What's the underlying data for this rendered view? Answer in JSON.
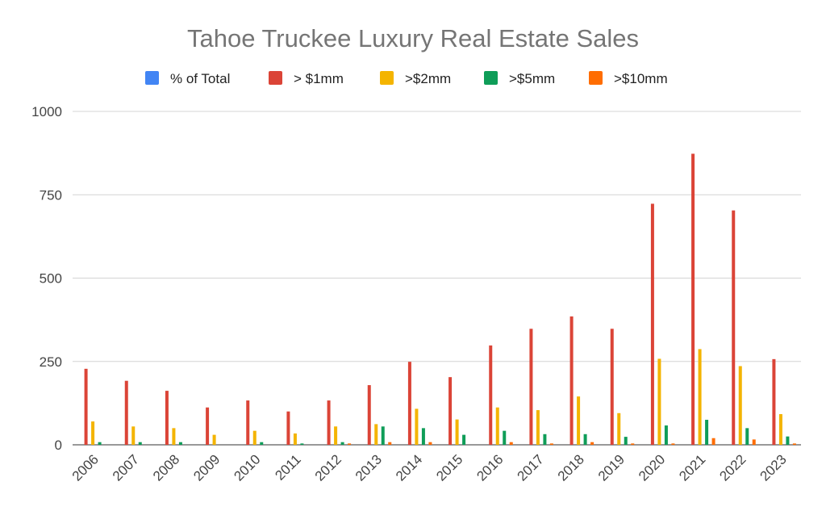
{
  "chart_data": {
    "type": "bar",
    "title": "Tahoe Truckee Luxury Real Estate Sales",
    "xlabel": "",
    "ylabel": "",
    "ylim": [
      0,
      1000
    ],
    "yticks": [
      0,
      250,
      500,
      750,
      1000
    ],
    "grid": true,
    "legend_position": "top",
    "categories": [
      "2006",
      "2007",
      "2008",
      "2009",
      "2010",
      "2011",
      "2012",
      "2013",
      "2014",
      "2015",
      "2016",
      "2017",
      "2018",
      "2019",
      "2020",
      "2021",
      "2022",
      "2023"
    ],
    "series": [
      {
        "name": "% of Total",
        "color": "#4285f4",
        "values": [
          0,
          0,
          0,
          0,
          0,
          0,
          0,
          0,
          0,
          0,
          0,
          0,
          0,
          0,
          0,
          0,
          0,
          0
        ]
      },
      {
        "name": "> $1mm",
        "color": "#db4437",
        "values": [
          228,
          192,
          162,
          112,
          133,
          100,
          133,
          179,
          249,
          203,
          298,
          348,
          385,
          348,
          723,
          873,
          703,
          257
        ]
      },
      {
        "name": ">$2mm",
        "color": "#f4b400",
        "values": [
          70,
          55,
          50,
          30,
          42,
          34,
          55,
          62,
          108,
          76,
          112,
          104,
          145,
          95,
          258,
          287,
          236,
          92
        ]
      },
      {
        "name": ">$5mm",
        "color": "#0f9d58",
        "values": [
          8,
          8,
          8,
          0,
          8,
          4,
          8,
          55,
          50,
          30,
          42,
          32,
          32,
          24,
          58,
          75,
          50,
          25
        ]
      },
      {
        "name": ">$10mm",
        "color": "#ff6d01",
        "values": [
          0,
          0,
          0,
          0,
          0,
          0,
          4,
          8,
          8,
          0,
          8,
          4,
          8,
          4,
          4,
          20,
          16,
          4
        ]
      }
    ]
  }
}
